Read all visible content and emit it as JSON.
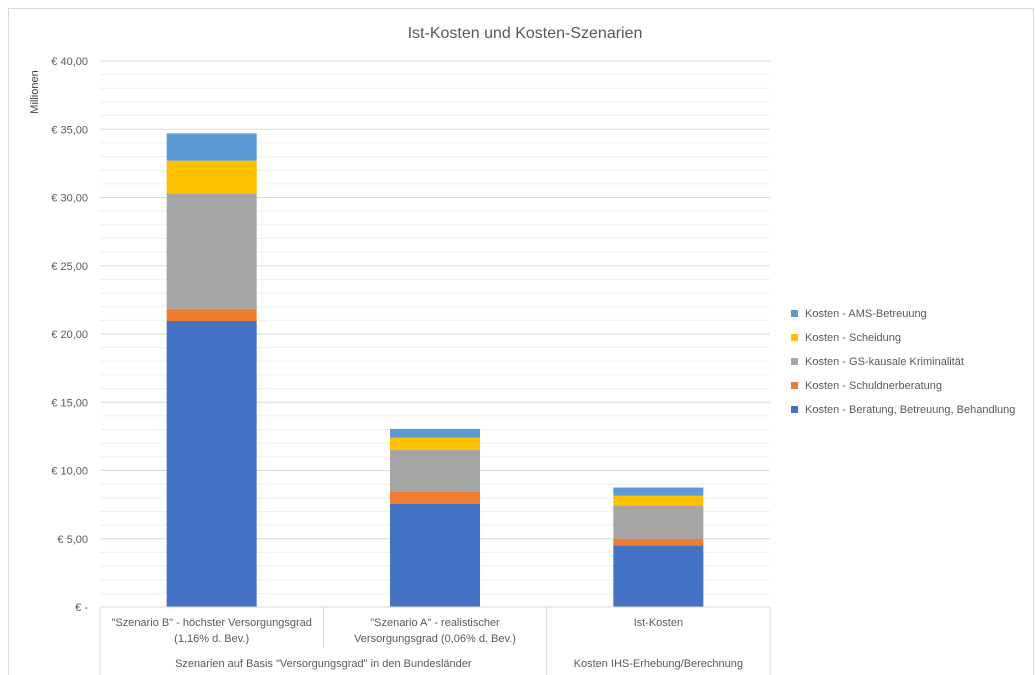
{
  "chart_data": {
    "type": "bar",
    "stacked": true,
    "title": "Ist-Kosten und Kosten-Szenarien",
    "ylabel": "Millionen",
    "ylim": [
      0,
      40
    ],
    "ytick_step": 5,
    "minor_grid_step": 1,
    "ytick_labels": [
      "€ -",
      "€ 5,00",
      "€ 10,00",
      "€ 15,00",
      "€ 20,00",
      "€ 25,00",
      "€ 30,00",
      "€ 35,00",
      "€ 40,00"
    ],
    "grid": true,
    "legend_position": "right",
    "categories": [
      [
        "\"Szenario B\" - höchster Versorgungsgrad",
        "(1,16% d. Bev.)"
      ],
      [
        "\"Szenario A\" - realistischer",
        "Versorgungsgrad (0,06% d. Bev.)"
      ],
      [
        "Ist-Kosten"
      ]
    ],
    "category_groups": [
      {
        "label": "Szenarien auf Basis \"Versorgungsgrad\" in den Bundesländer",
        "span": [
          0,
          1
        ]
      },
      {
        "label": "Kosten IHS-Erhebung/Berechnung",
        "span": [
          2,
          2
        ]
      }
    ],
    "series": [
      {
        "name": "Kosten - Beratung, Betreuung, Behandlung",
        "color": "#4472c4",
        "values": [
          20.95,
          7.55,
          4.5
        ]
      },
      {
        "name": "Kosten - Schuldnerberatung",
        "color": "#ed7d31",
        "values": [
          0.9,
          0.9,
          0.5
        ]
      },
      {
        "name": "Kosten - GS-kausale Kriminalität",
        "color": "#a5a5a5",
        "values": [
          8.45,
          3.05,
          2.45
        ]
      },
      {
        "name": "Kosten - Scheidung",
        "color": "#ffc000",
        "values": [
          2.4,
          0.9,
          0.7
        ]
      },
      {
        "name": "Kosten - AMS-Betreuung",
        "color": "#5b9bd5",
        "values": [
          2.0,
          0.65,
          0.6
        ]
      }
    ]
  }
}
